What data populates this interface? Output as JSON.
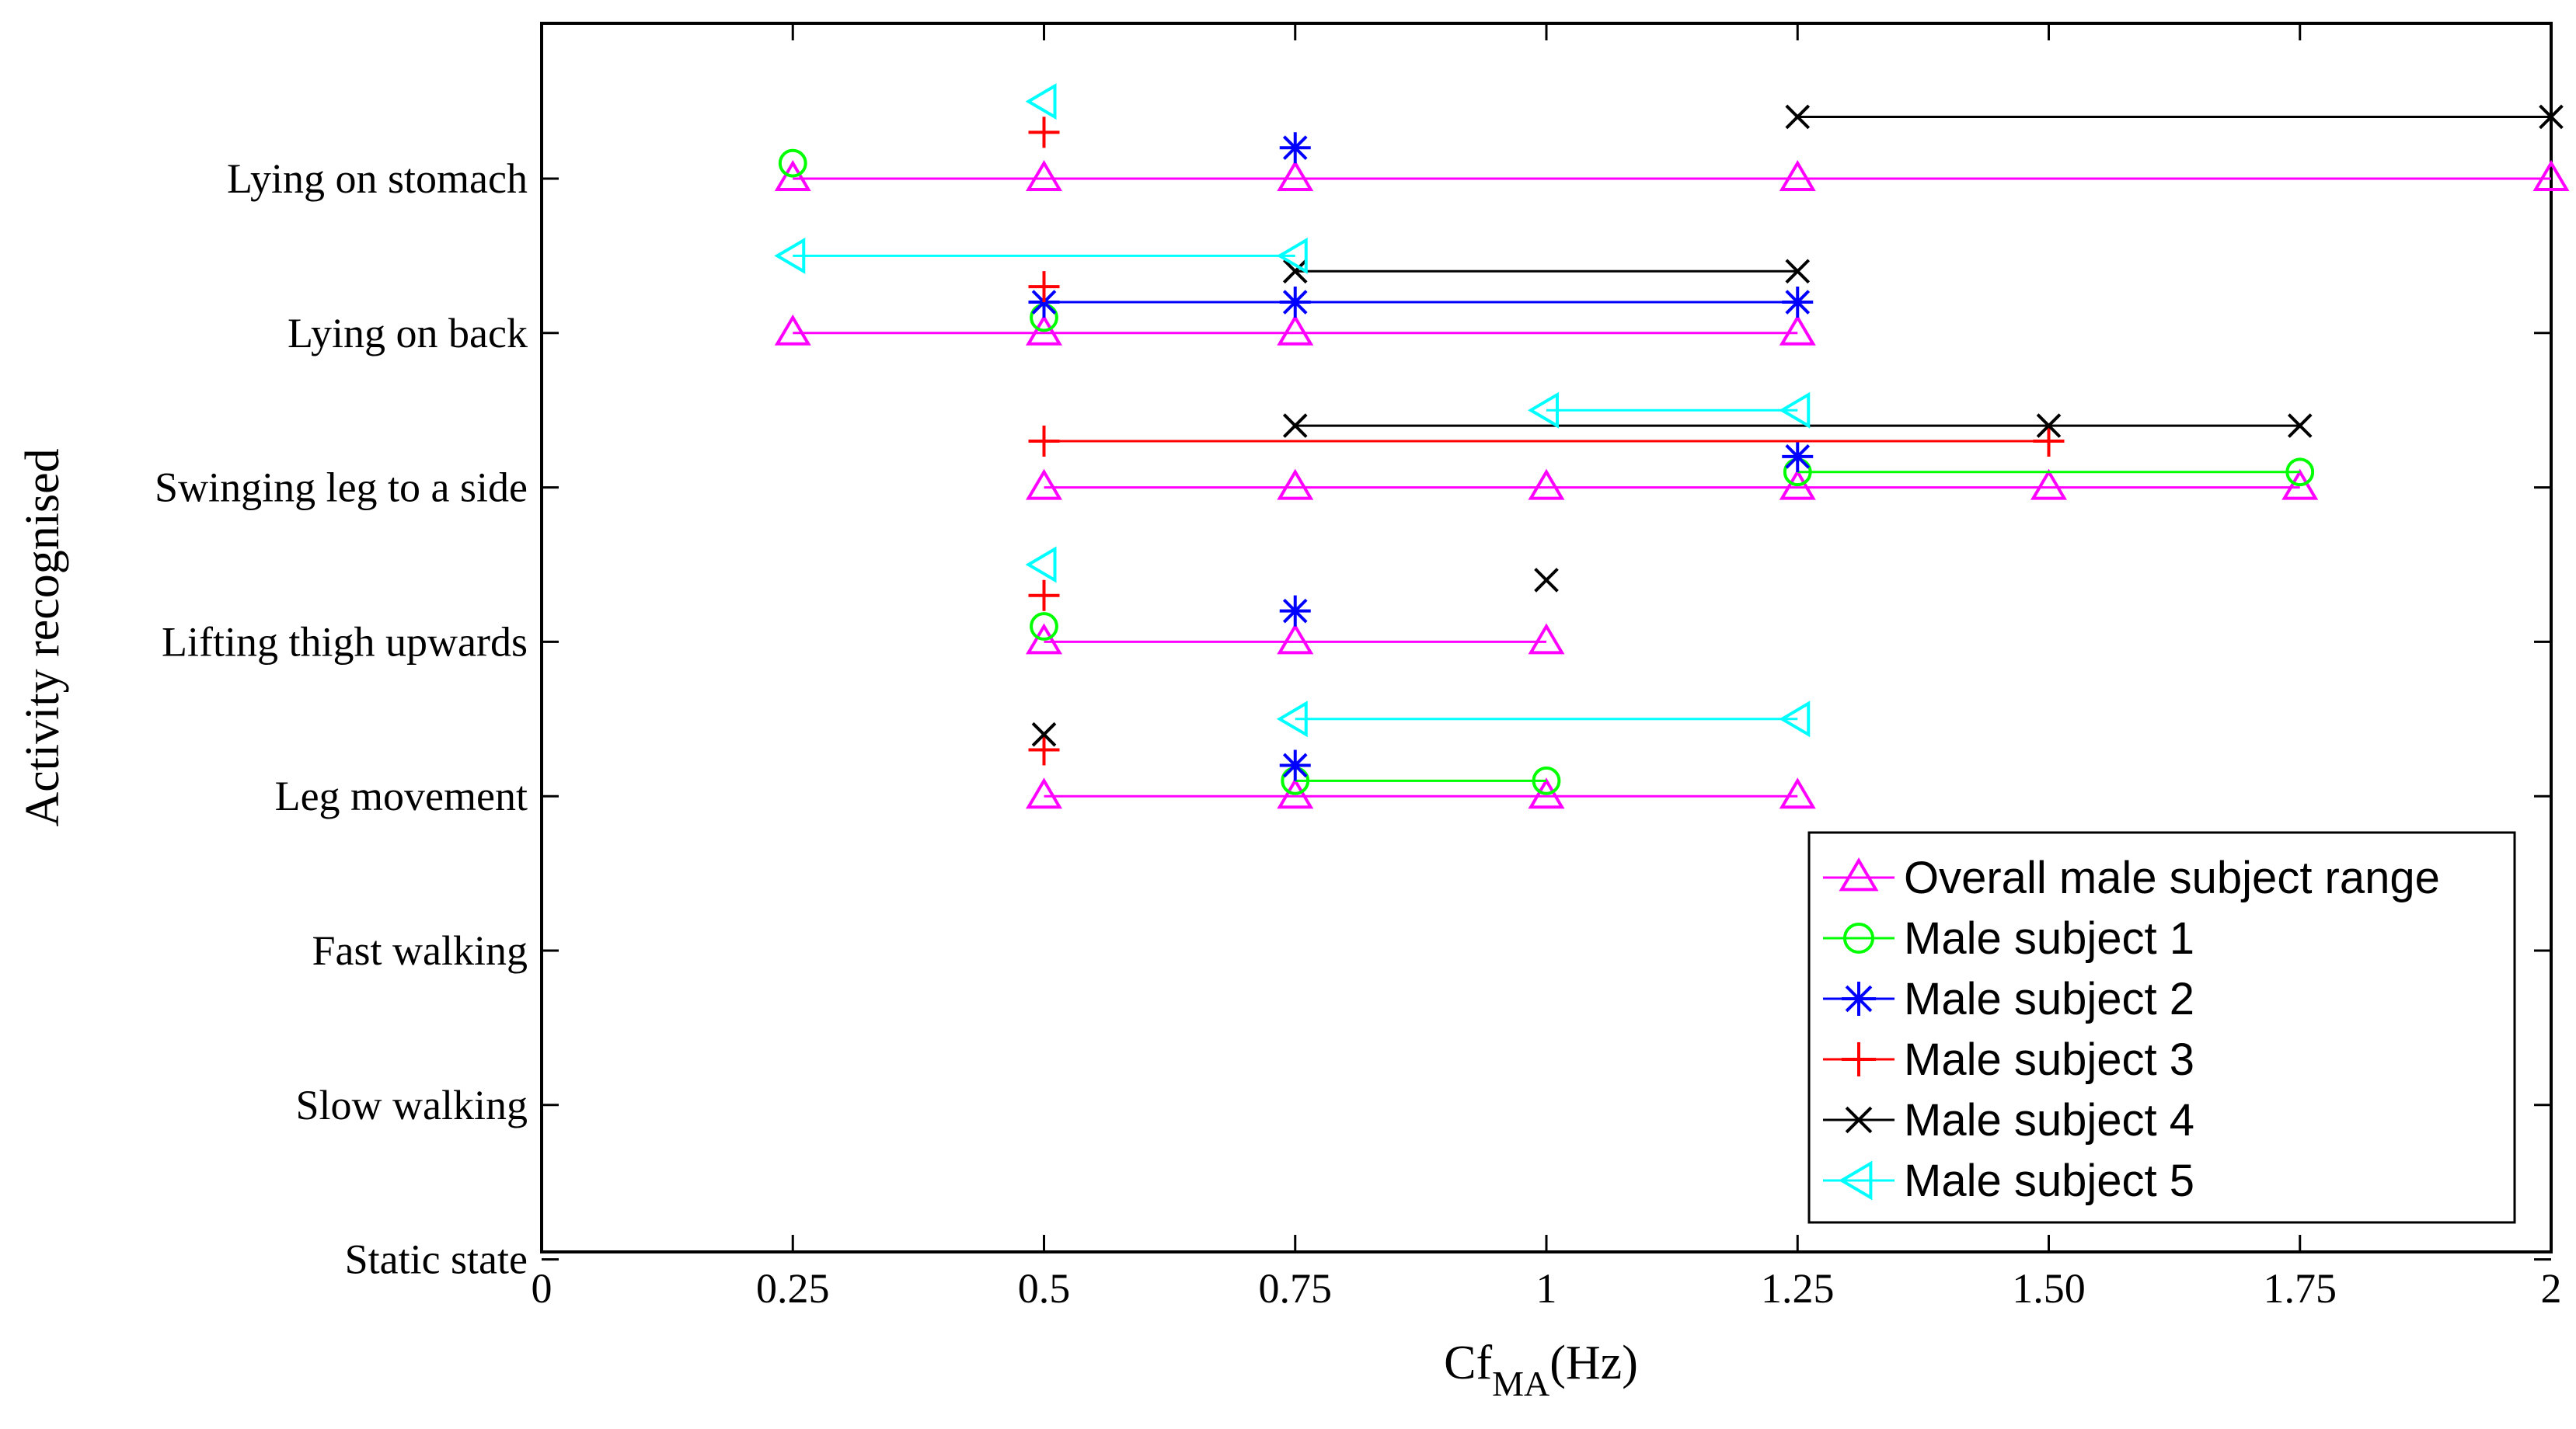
{
  "chart_data": {
    "type": "scatter",
    "title": "",
    "xlabel_main": "Cf",
    "xlabel_sub": "MA",
    "xlabel_unit": "(Hz)",
    "ylabel": "Activity recognised",
    "xlim": [
      0,
      2
    ],
    "x_ticks": [
      0,
      0.25,
      0.5,
      0.75,
      1,
      1.25,
      1.5,
      1.75,
      2
    ],
    "x_tick_labels": [
      "0",
      "0.25",
      "0.5",
      "0.75",
      "1",
      "1.25",
      "1.50",
      "1.75",
      "2"
    ],
    "categories": [
      "Lying on stomach",
      "Lying on back",
      "Swinging leg to a side",
      "Lifting thigh upwards",
      "Leg movement",
      "Fast walking",
      "Slow walking",
      "Static state"
    ],
    "legend_position": "bottom-right",
    "series": [
      {
        "name": "Overall male subject range",
        "color": "#ff00ff",
        "marker": "triangle-up",
        "offset": 0.0,
        "data": {
          "Lying on stomach": [
            0.25,
            0.5,
            0.75,
            1.25,
            2
          ],
          "Lying on back": [
            0.25,
            0.5,
            0.75,
            1.25
          ],
          "Swinging leg to a side": [
            0.5,
            0.75,
            1,
            1.25,
            1.5,
            1.75
          ],
          "Lifting thigh upwards": [
            0.5,
            0.75,
            1
          ],
          "Leg movement": [
            0.5,
            0.75,
            1,
            1.25
          ]
        }
      },
      {
        "name": "Male subject 1",
        "color": "#00ff00",
        "marker": "circle",
        "offset": 0.1,
        "data": {
          "Lying on stomach": [
            0.25
          ],
          "Lying on back": [
            0.5
          ],
          "Swinging leg to a side": [
            1.25,
            1.75
          ],
          "Lifting thigh upwards": [
            0.5
          ],
          "Leg movement": [
            0.75,
            1
          ]
        }
      },
      {
        "name": "Male subject 2",
        "color": "#0000ff",
        "marker": "asterisk",
        "offset": 0.2,
        "data": {
          "Lying on stomach": [
            0.75
          ],
          "Lying on back": [
            0.5,
            0.75,
            1.25
          ],
          "Swinging leg to a side": [
            1.25
          ],
          "Lifting thigh upwards": [
            0.75
          ],
          "Leg movement": [
            0.75
          ]
        }
      },
      {
        "name": "Male subject 3",
        "color": "#ff0000",
        "marker": "plus",
        "offset": 0.3,
        "data": {
          "Lying on stomach": [
            0.5
          ],
          "Lying on back": [
            0.5
          ],
          "Swinging leg to a side": [
            0.5,
            1.5
          ],
          "Lifting thigh upwards": [
            0.5
          ],
          "Leg movement": [
            0.5
          ]
        }
      },
      {
        "name": "Male subject 4",
        "color": "#000000",
        "marker": "x",
        "offset": 0.4,
        "data": {
          "Lying on stomach": [
            1.25,
            2
          ],
          "Lying on back": [
            0.75,
            1.25
          ],
          "Swinging leg to a side": [
            0.75,
            1.5,
            1.75
          ],
          "Lifting thigh upwards": [
            1
          ],
          "Leg movement": [
            0.5
          ]
        }
      },
      {
        "name": "Male subject 5",
        "color": "#00ffff",
        "marker": "triangle-left",
        "offset": 0.5,
        "data": {
          "Lying on stomach": [
            0.5
          ],
          "Lying on back": [
            0.25,
            0.75
          ],
          "Swinging leg to a side": [
            1,
            1.25
          ],
          "Lifting thigh upwards": [
            0.5
          ],
          "Leg movement": [
            0.75,
            1.25
          ]
        }
      }
    ]
  }
}
